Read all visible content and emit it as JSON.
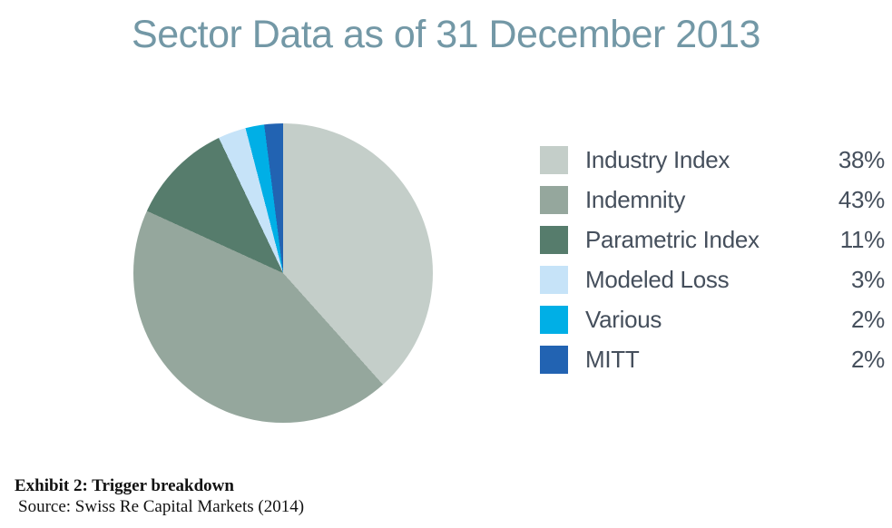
{
  "chart_data": {
    "type": "pie",
    "title": "Sector Data as of 31 December 2013",
    "labels": [
      "Industry Index",
      "Indemnity",
      "Parametric Index",
      "Modeled Loss",
      "Various",
      "MITT"
    ],
    "values": [
      38,
      43,
      11,
      3,
      2,
      2
    ],
    "value_labels": [
      "38%",
      "43%",
      "11%",
      "3%",
      "2%",
      "2%"
    ],
    "colors": [
      "#c4cec9",
      "#95a79d",
      "#567c6c",
      "#c6e3f8",
      "#00afe6",
      "#2263b2"
    ],
    "start_angle_deg": 0,
    "direction": "clockwise",
    "legend_position": "right",
    "title_color": "#7398a6",
    "legend_text_color": "#454f5c"
  },
  "caption": {
    "exhibit": "Exhibit 2: Trigger breakdown",
    "source": "Source: Swiss Re Capital Markets (2014)"
  }
}
